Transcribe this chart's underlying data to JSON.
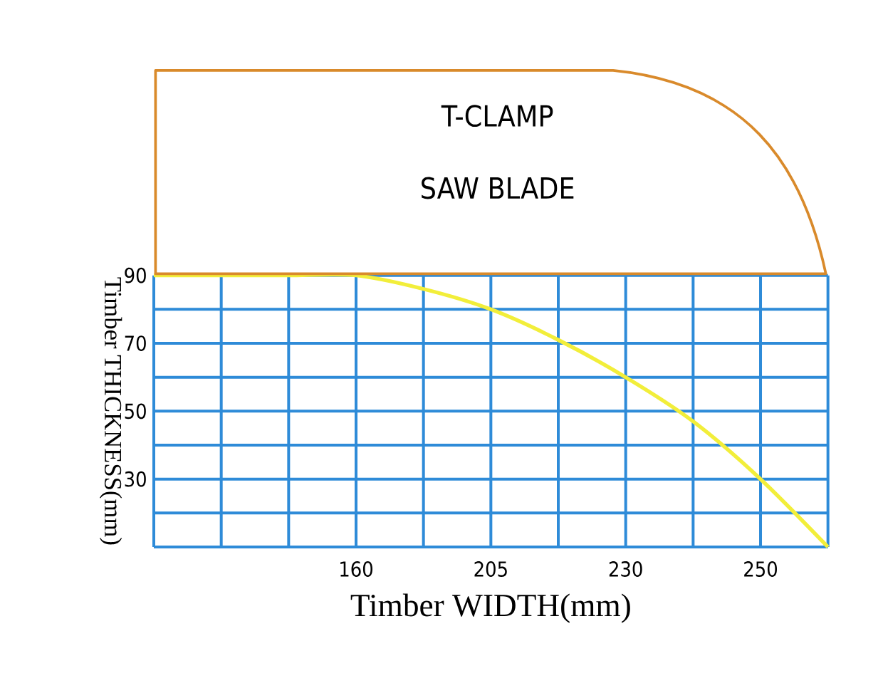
{
  "chart_data": {
    "type": "line",
    "xlabel": "Timber WIDTH(mm)",
    "ylabel": "Timber THICKNESS(mm)",
    "annotations": [
      "T-CLAMP",
      "SAW  BLADE"
    ],
    "categories": [
      null,
      null,
      null,
      "160",
      null,
      "205",
      null,
      "230",
      null,
      "250",
      null
    ],
    "series": [
      {
        "color": "#f2ee3a",
        "values": [
          90,
          90,
          90,
          90,
          86,
          80,
          71,
          60,
          47,
          30,
          10
        ]
      }
    ],
    "ylim": [
      10,
      90
    ],
    "yticks": [
      {
        "value": 10,
        "label": null
      },
      {
        "value": 20,
        "label": null
      },
      30,
      {
        "value": 40,
        "label": null
      },
      50,
      {
        "value": 60,
        "label": null
      },
      70,
      {
        "value": 80,
        "label": null
      },
      90
    ],
    "grid": true,
    "marker": "none",
    "line_style": "solid"
  }
}
